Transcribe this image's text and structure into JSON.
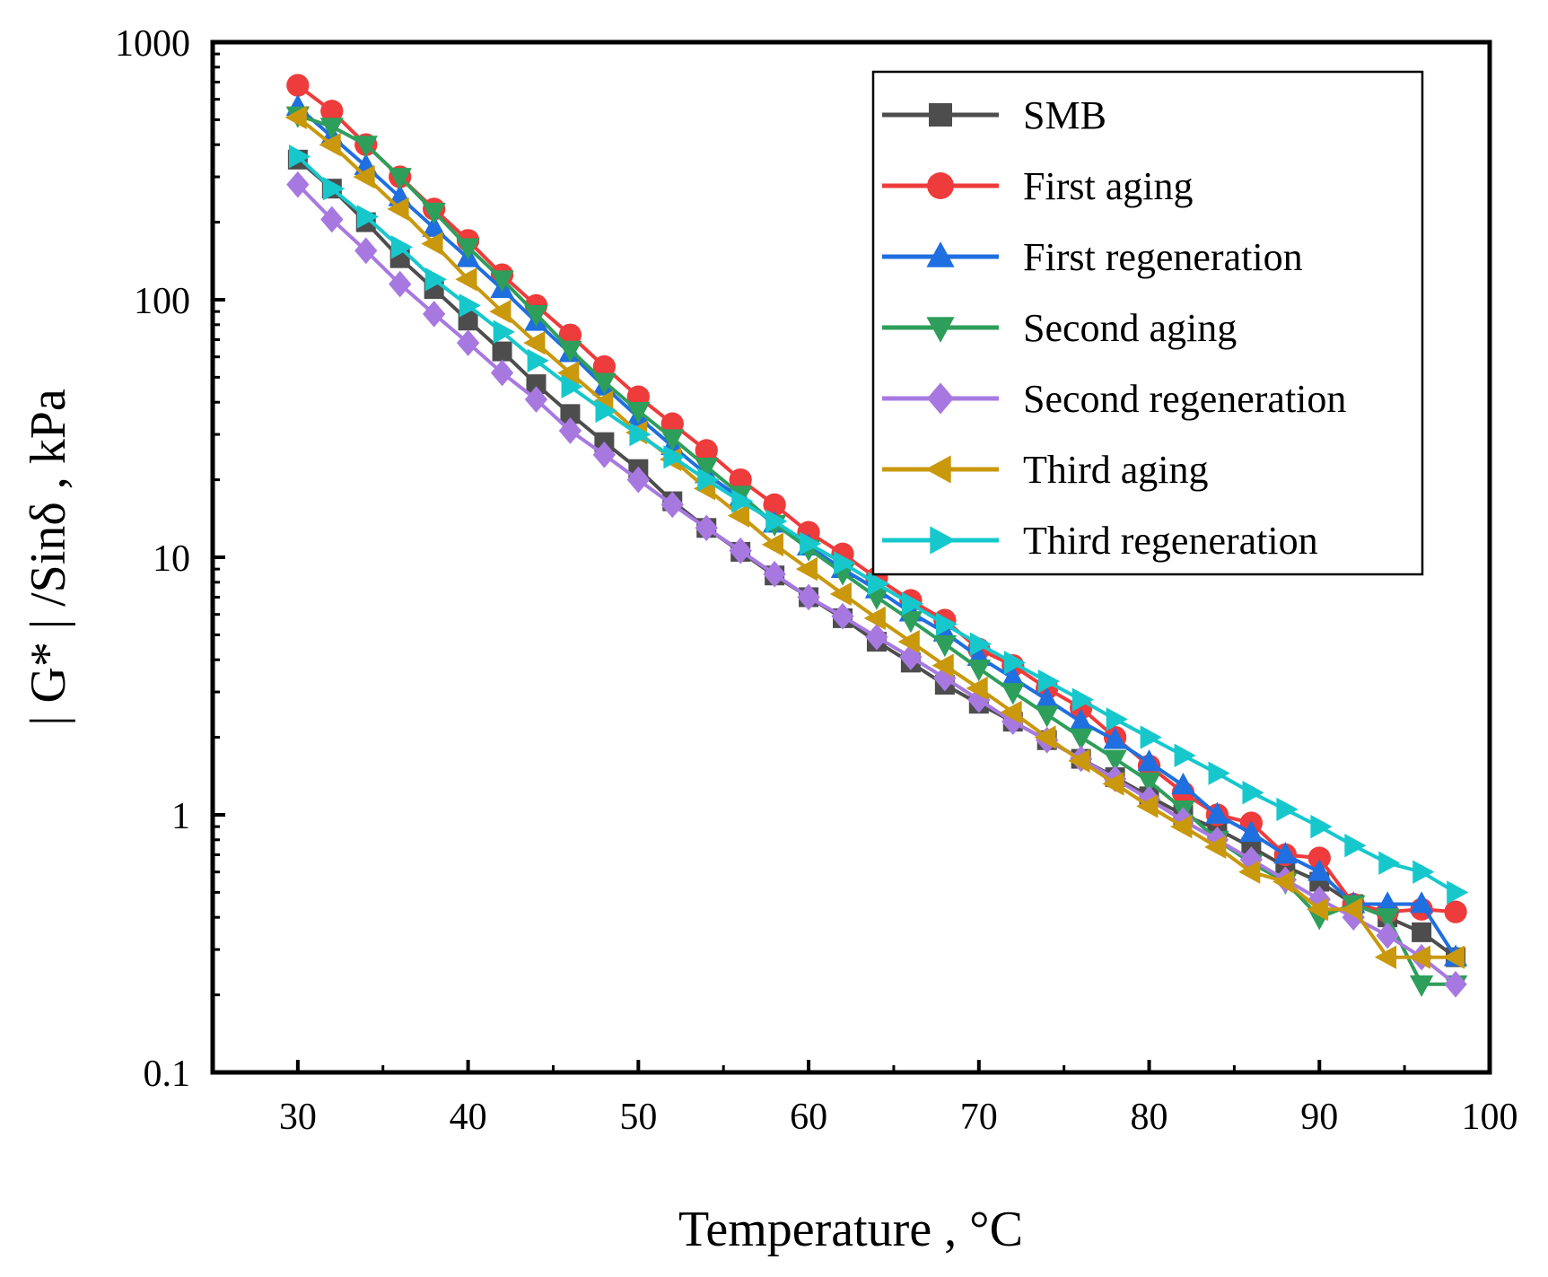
{
  "chart_data": {
    "type": "line",
    "title": "",
    "xlabel": "Temperature , °C",
    "ylabel": "| G* | /Sinδ , kPa",
    "xlim": [
      25,
      100
    ],
    "ylim": [
      0.1,
      1000
    ],
    "yscale": "log",
    "xticks": [
      30,
      40,
      50,
      60,
      70,
      80,
      90,
      100
    ],
    "xtick_labels": [
      "30",
      "40",
      "50",
      "60",
      "70",
      "80",
      "90",
      "100"
    ],
    "yticks": [
      0.1,
      1,
      10,
      100,
      1000
    ],
    "ytick_labels": [
      "0.1",
      "1",
      "10",
      "100",
      "1000"
    ],
    "grid": false,
    "legend_position": "top-right",
    "x": [
      30,
      32,
      34,
      36,
      38,
      40,
      42,
      44,
      46,
      48,
      50,
      52,
      54,
      56,
      58,
      60,
      62,
      64,
      66,
      68,
      70,
      72,
      74,
      76,
      78,
      80,
      82,
      84,
      86,
      88,
      90,
      92,
      94,
      96,
      98
    ],
    "series": [
      {
        "name": "SMB",
        "color": "#4d4d4d",
        "marker": "square",
        "values": [
          350,
          270,
          200,
          145,
          110,
          83,
          63,
          47,
          36,
          28,
          22,
          16.5,
          13,
          10.5,
          8.5,
          7,
          5.8,
          4.7,
          3.9,
          3.2,
          2.7,
          2.3,
          1.95,
          1.65,
          1.4,
          1.18,
          1.0,
          0.88,
          0.75,
          0.63,
          0.55,
          0.45,
          0.4,
          0.35,
          0.28
        ]
      },
      {
        "name": "First aging",
        "color": "#ee3b3b",
        "marker": "circle",
        "values": [
          680,
          540,
          400,
          300,
          225,
          170,
          125,
          95,
          73,
          55,
          42,
          33,
          26,
          20,
          16,
          12.5,
          10.3,
          8.3,
          6.8,
          5.7,
          4.4,
          3.8,
          3.1,
          2.6,
          2.0,
          1.55,
          1.22,
          1.0,
          0.93,
          0.7,
          0.68,
          0.45,
          0.42,
          0.43,
          0.42
        ]
      },
      {
        "name": "First regeneration",
        "color": "#1f6fe0",
        "marker": "triangle-up",
        "values": [
          560,
          430,
          330,
          250,
          190,
          145,
          110,
          82,
          62,
          46,
          35,
          27,
          21,
          17,
          13.5,
          11,
          9,
          7.5,
          6.1,
          5.1,
          4.1,
          3.4,
          2.8,
          2.3,
          1.95,
          1.6,
          1.3,
          1.0,
          0.85,
          0.7,
          0.6,
          0.45,
          0.45,
          0.45,
          0.28
        ]
      },
      {
        "name": "Second aging",
        "color": "#2e9e5b",
        "marker": "triangle-down",
        "values": [
          520,
          470,
          400,
          300,
          220,
          160,
          120,
          88,
          64,
          48,
          37,
          29,
          22.5,
          17.5,
          13.5,
          10.8,
          8.7,
          7,
          5.7,
          4.6,
          3.7,
          3.0,
          2.45,
          2.0,
          1.65,
          1.35,
          1.05,
          0.8,
          0.65,
          0.55,
          0.4,
          0.45,
          0.4,
          0.22,
          0.22
        ]
      },
      {
        "name": "Second regeneration",
        "color": "#a779e0",
        "marker": "diamond",
        "values": [
          280,
          205,
          155,
          115,
          88,
          68,
          52,
          41,
          31,
          25,
          20,
          16,
          13,
          10.6,
          8.6,
          7,
          5.9,
          4.9,
          4.1,
          3.4,
          2.8,
          2.3,
          1.95,
          1.65,
          1.38,
          1.15,
          0.95,
          0.8,
          0.67,
          0.56,
          0.47,
          0.4,
          0.34,
          0.28,
          0.22
        ]
      },
      {
        "name": "Third aging",
        "color": "#c9980c",
        "marker": "triangle-left",
        "values": [
          510,
          400,
          300,
          225,
          165,
          120,
          90,
          68,
          52,
          40,
          30.5,
          24,
          18.5,
          14.5,
          11.2,
          9,
          7.2,
          5.8,
          4.7,
          3.8,
          3.1,
          2.5,
          2.0,
          1.62,
          1.32,
          1.08,
          0.9,
          0.75,
          0.6,
          0.55,
          0.43,
          0.43,
          0.28,
          0.28,
          0.28
        ]
      },
      {
        "name": "Third regeneration",
        "color": "#16c8cc",
        "marker": "triangle-right",
        "values": [
          360,
          270,
          210,
          160,
          120,
          95,
          75,
          58,
          46,
          37,
          30,
          24.5,
          20,
          16.5,
          13.8,
          11.3,
          9.5,
          7.9,
          6.6,
          5.5,
          4.6,
          3.9,
          3.3,
          2.8,
          2.35,
          2.0,
          1.7,
          1.45,
          1.22,
          1.05,
          0.9,
          0.76,
          0.65,
          0.6,
          0.5
        ]
      }
    ]
  }
}
